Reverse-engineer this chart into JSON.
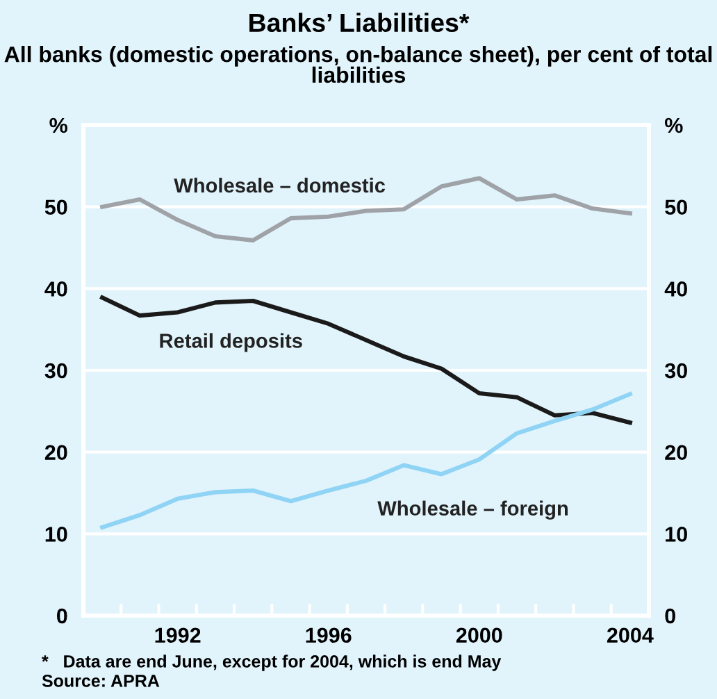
{
  "chart_data": {
    "type": "line",
    "title": "Banks’ Liabilities*",
    "subtitle": "All banks (domestic operations, on-balance sheet), per cent of total liabilities",
    "x": [
      1990,
      1991,
      1992,
      1993,
      1994,
      1995,
      1996,
      1997,
      1998,
      1999,
      2000,
      2001,
      2002,
      2003,
      2004
    ],
    "series": [
      {
        "name": "Wholesale – domestic",
        "color": "#9fa3a8",
        "values": [
          50.0,
          50.9,
          48.4,
          46.4,
          45.9,
          48.6,
          48.8,
          49.5,
          49.7,
          52.5,
          53.5,
          50.9,
          51.4,
          49.8,
          49.2
        ]
      },
      {
        "name": "Retail deposits",
        "color": "#1a1a1a",
        "values": [
          38.9,
          36.7,
          37.1,
          38.3,
          38.5,
          37.1,
          35.7,
          33.7,
          31.7,
          30.2,
          27.2,
          26.7,
          24.5,
          24.8,
          23.6
        ]
      },
      {
        "name": "Wholesale – foreign",
        "color": "#8fd3f5",
        "values": [
          10.8,
          12.3,
          14.3,
          15.1,
          15.3,
          14.0,
          15.3,
          16.5,
          18.4,
          17.3,
          19.1,
          22.3,
          23.8,
          25.2,
          27.1
        ]
      }
    ],
    "xlim": [
      1989.5,
      2004.5
    ],
    "xticks": [
      {
        "value": 1990.5,
        "label": null
      },
      {
        "value": 1991.5,
        "label": null
      },
      {
        "value": 1992,
        "label": "1992"
      },
      {
        "value": 1992.5,
        "label": null
      },
      {
        "value": 1993.5,
        "label": null
      },
      {
        "value": 1994.5,
        "label": null
      },
      {
        "value": 1995.5,
        "label": null
      },
      {
        "value": 1996,
        "label": "1996"
      },
      {
        "value": 1996.5,
        "label": null
      },
      {
        "value": 1997.5,
        "label": null
      },
      {
        "value": 1998.5,
        "label": null
      },
      {
        "value": 1999.5,
        "label": null
      },
      {
        "value": 2000,
        "label": "2000"
      },
      {
        "value": 2000.5,
        "label": null
      },
      {
        "value": 2001.5,
        "label": null
      },
      {
        "value": 2002.5,
        "label": null
      },
      {
        "value": 2003.5,
        "label": null
      },
      {
        "value": 2004,
        "label": "2004"
      }
    ],
    "ylim": [
      0,
      60
    ],
    "yticks": [
      0,
      10,
      20,
      30,
      40,
      50,
      {
        "value": 60,
        "label": "%"
      }
    ],
    "y2lim": [
      0,
      60
    ],
    "y2ticks": [
      0,
      10,
      20,
      30,
      40,
      50,
      {
        "value": 60,
        "label": "%"
      }
    ],
    "grid": "y",
    "legend": false,
    "marker": "none",
    "line_style": "solid",
    "annotations": [
      "*   Data are end June, except for 2004, which is end May",
      "Source: APRA"
    ]
  }
}
